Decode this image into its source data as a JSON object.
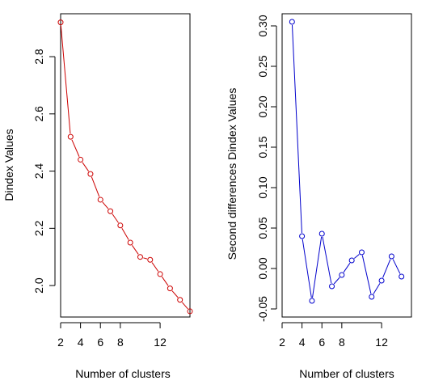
{
  "chart_data": [
    {
      "type": "line",
      "title": "",
      "xlabel": "Number of clusters",
      "ylabel": "Dindex Values",
      "xlim": [
        2,
        15
      ],
      "ylim": [
        1.89,
        2.95
      ],
      "xticks": [
        2,
        4,
        6,
        8,
        12
      ],
      "yticks": [
        2.0,
        2.2,
        2.4,
        2.6,
        2.8
      ],
      "ytick_labels": [
        "2.0",
        "2.2",
        "2.4",
        "2.6",
        "2.8"
      ],
      "grid": false,
      "marker": "open-circle",
      "color": "#cc0000",
      "series": [
        {
          "x": [
            2,
            3,
            4,
            5,
            6,
            7,
            8,
            9,
            10,
            11,
            12,
            13,
            14,
            15
          ],
          "y": [
            2.92,
            2.52,
            2.44,
            2.39,
            2.3,
            2.26,
            2.21,
            2.15,
            2.1,
            2.09,
            2.04,
            1.99,
            1.95,
            1.91
          ]
        }
      ]
    },
    {
      "type": "line",
      "title": "",
      "xlabel": "Number of clusters",
      "ylabel": "Second differences Dindex Values",
      "xlim": [
        2,
        15
      ],
      "ylim": [
        -0.06,
        0.315
      ],
      "xticks": [
        2,
        4,
        6,
        8,
        12
      ],
      "yticks": [
        -0.05,
        0.0,
        0.05,
        0.1,
        0.15,
        0.2,
        0.25,
        0.3
      ],
      "ytick_labels": [
        "-0.05",
        "0.00",
        "0.05",
        "0.10",
        "0.15",
        "0.20",
        "0.25",
        "0.30"
      ],
      "grid": false,
      "marker": "open-circle",
      "color": "#0000cc",
      "series": [
        {
          "x": [
            3,
            4,
            5,
            6,
            7,
            8,
            9,
            10,
            11,
            12,
            13,
            14
          ],
          "y": [
            0.305,
            0.04,
            -0.04,
            0.043,
            -0.022,
            -0.008,
            0.01,
            0.02,
            -0.035,
            -0.015,
            0.015,
            -0.01
          ]
        }
      ]
    }
  ]
}
